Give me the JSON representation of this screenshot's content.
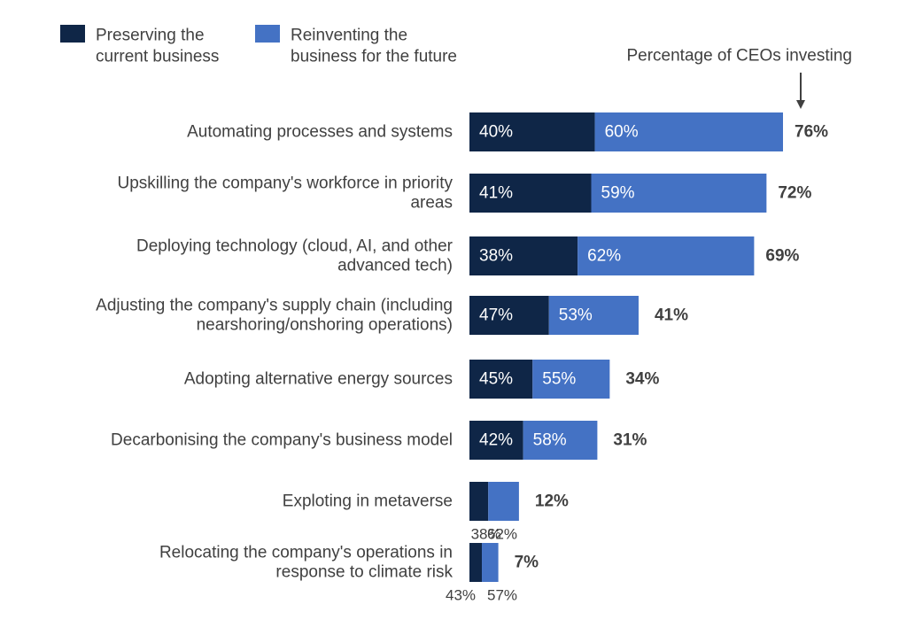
{
  "chart_data": {
    "type": "bar",
    "orientation": "horizontal",
    "stacked": true,
    "annotation": "Percentage of CEOs investing",
    "legend_position": "top-left",
    "colors": {
      "preserving": "#0f2647",
      "reinventing": "#4472c4"
    },
    "series": [
      {
        "name": "Preserving the current business",
        "legend_lines": [
          "Preserving the",
          "current business"
        ]
      },
      {
        "name": "Reinventing the business for the future",
        "legend_lines": [
          "Reinventing the",
          "business for the future"
        ]
      }
    ],
    "categories": [
      {
        "label": [
          "Automating processes and systems"
        ],
        "total": 76,
        "preserving": 40,
        "reinventing": 60,
        "total_label": "76%",
        "preserving_label": "40%",
        "reinventing_label": "60%"
      },
      {
        "label": [
          "Upskilling the company's workforce in priority",
          "areas"
        ],
        "total": 72,
        "preserving": 41,
        "reinventing": 59,
        "total_label": "72%",
        "preserving_label": "41%",
        "reinventing_label": "59%"
      },
      {
        "label": [
          "Deploying technology (cloud, AI, and other",
          "advanced tech)"
        ],
        "total": 69,
        "preserving": 38,
        "reinventing": 62,
        "total_label": "69%",
        "preserving_label": "38%",
        "reinventing_label": "62%"
      },
      {
        "label": [
          "Adjusting the company's supply chain (including",
          "nearshoring/onshoring operations)"
        ],
        "total": 41,
        "preserving": 47,
        "reinventing": 53,
        "total_label": "41%",
        "preserving_label": "47%",
        "reinventing_label": "53%"
      },
      {
        "label": [
          "Adopting alternative energy sources"
        ],
        "total": 34,
        "preserving": 45,
        "reinventing": 55,
        "total_label": "34%",
        "preserving_label": "45%",
        "reinventing_label": "55%"
      },
      {
        "label": [
          "Decarbonising the company's business model"
        ],
        "total": 31,
        "preserving": 42,
        "reinventing": 58,
        "total_label": "31%",
        "preserving_label": "42%",
        "reinventing_label": "58%"
      },
      {
        "label": [
          "Exploting in metaverse"
        ],
        "total": 12,
        "preserving": 38,
        "reinventing": 62,
        "total_label": "12%",
        "preserving_label": "38%",
        "reinventing_label": "62%"
      },
      {
        "label": [
          "Relocating the company's operations in",
          "response to climate risk"
        ],
        "total": 7,
        "preserving": 43,
        "reinventing": 57,
        "total_label": "7%",
        "preserving_label": "43%",
        "reinventing_label": "57%"
      }
    ]
  }
}
